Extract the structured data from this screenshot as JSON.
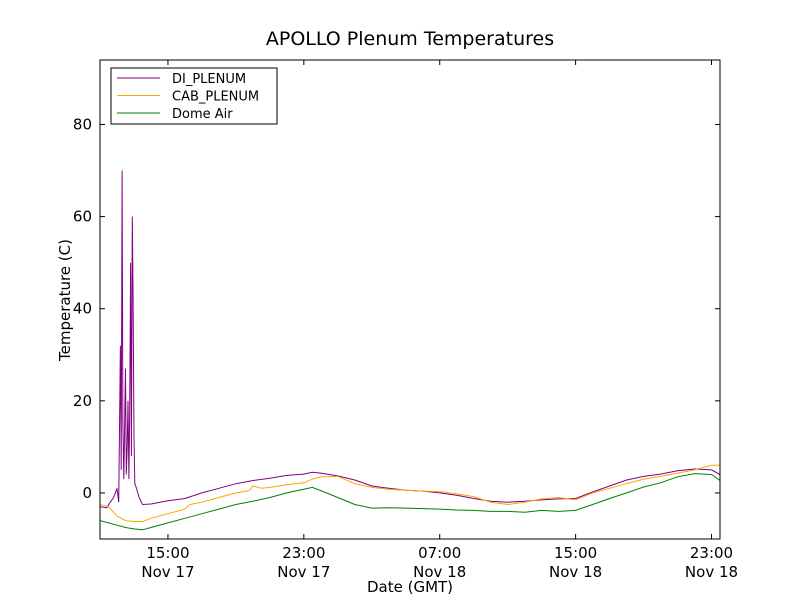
{
  "chart_data": {
    "type": "line",
    "title": "APOLLO Plenum Temperatures",
    "xlabel": "Date (GMT)",
    "ylabel": "Temperature (C)",
    "x_unit": "hours since Nov 17 00:00 GMT",
    "xlim": [
      11.0,
      47.5
    ],
    "ylim": [
      -10,
      94
    ],
    "yticks": [
      0,
      20,
      40,
      60,
      80
    ],
    "xticks": [
      {
        "x": 15,
        "time": "15:00",
        "date": "Nov 17"
      },
      {
        "x": 23,
        "time": "23:00",
        "date": "Nov 17"
      },
      {
        "x": 31,
        "time": "07:00",
        "date": "Nov 18"
      },
      {
        "x": 39,
        "time": "15:00",
        "date": "Nov 18"
      },
      {
        "x": 47,
        "time": "23:00",
        "date": "Nov 18"
      }
    ],
    "legend_position": "top-left",
    "series": [
      {
        "name": "DI_PLENUM",
        "color": "#800080",
        "points": [
          [
            11.0,
            -3
          ],
          [
            11.4,
            -3.2
          ],
          [
            11.6,
            -2
          ],
          [
            11.8,
            -1
          ],
          [
            12.0,
            1
          ],
          [
            12.1,
            -2
          ],
          [
            12.2,
            32
          ],
          [
            12.25,
            5
          ],
          [
            12.3,
            70
          ],
          [
            12.35,
            15
          ],
          [
            12.4,
            3
          ],
          [
            12.5,
            27
          ],
          [
            12.55,
            4
          ],
          [
            12.6,
            10
          ],
          [
            12.65,
            20
          ],
          [
            12.7,
            3
          ],
          [
            12.75,
            18
          ],
          [
            12.8,
            50
          ],
          [
            12.85,
            8
          ],
          [
            12.9,
            60
          ],
          [
            12.95,
            42
          ],
          [
            13.0,
            12
          ],
          [
            13.05,
            2
          ],
          [
            13.15,
            1
          ],
          [
            13.3,
            -1
          ],
          [
            13.5,
            -2.5
          ],
          [
            14,
            -2.4
          ],
          [
            15,
            -1.7
          ],
          [
            16,
            -1.2
          ],
          [
            17,
            0
          ],
          [
            18,
            1
          ],
          [
            19,
            2
          ],
          [
            20,
            2.7
          ],
          [
            21,
            3.2
          ],
          [
            22,
            3.8
          ],
          [
            23,
            4.1
          ],
          [
            23.5,
            4.5
          ],
          [
            24,
            4.3
          ],
          [
            25,
            3.7
          ],
          [
            26,
            2.8
          ],
          [
            27,
            1.5
          ],
          [
            28,
            1.0
          ],
          [
            29,
            0.6
          ],
          [
            30,
            0.4
          ],
          [
            31,
            0
          ],
          [
            32,
            -0.5
          ],
          [
            33,
            -1.2
          ],
          [
            34,
            -1.8
          ],
          [
            35,
            -2
          ],
          [
            36,
            -1.8
          ],
          [
            37,
            -1.5
          ],
          [
            38,
            -1.3
          ],
          [
            39,
            -1.2
          ],
          [
            40,
            0.2
          ],
          [
            41,
            1.5
          ],
          [
            42,
            2.8
          ],
          [
            43,
            3.6
          ],
          [
            44,
            4.1
          ],
          [
            45,
            4.8
          ],
          [
            46,
            5.2
          ],
          [
            47,
            5.0
          ],
          [
            47.5,
            4.0
          ]
        ]
      },
      {
        "name": "CAB_PLENUM",
        "color": "#FFA500",
        "points": [
          [
            11.0,
            -2.5
          ],
          [
            11.5,
            -3
          ],
          [
            12.0,
            -5
          ],
          [
            12.5,
            -6
          ],
          [
            13.0,
            -6.2
          ],
          [
            13.5,
            -6.2
          ],
          [
            14,
            -5.5
          ],
          [
            15,
            -4.5
          ],
          [
            16,
            -3.5
          ],
          [
            16.3,
            -2.5
          ],
          [
            17,
            -2
          ],
          [
            18,
            -1
          ],
          [
            19,
            0
          ],
          [
            19.8,
            0.5
          ],
          [
            20,
            1.5
          ],
          [
            20.5,
            1
          ],
          [
            21,
            1.2
          ],
          [
            22,
            1.8
          ],
          [
            23,
            2.2
          ],
          [
            23.5,
            3
          ],
          [
            24,
            3.5
          ],
          [
            25,
            3.6
          ],
          [
            26,
            2
          ],
          [
            27,
            1.2
          ],
          [
            28,
            0.8
          ],
          [
            29,
            0.6
          ],
          [
            30,
            0.4
          ],
          [
            31,
            0.3
          ],
          [
            32,
            -0.2
          ],
          [
            33,
            -0.8
          ],
          [
            34,
            -2
          ],
          [
            35,
            -2.5
          ],
          [
            36,
            -2
          ],
          [
            37,
            -1.3
          ],
          [
            38,
            -1.0
          ],
          [
            39,
            -1.5
          ],
          [
            40,
            0
          ],
          [
            41,
            1
          ],
          [
            42,
            2
          ],
          [
            43,
            3
          ],
          [
            44,
            3.6
          ],
          [
            45,
            4.3
          ],
          [
            46,
            5
          ],
          [
            47,
            6
          ],
          [
            47.5,
            6
          ]
        ]
      },
      {
        "name": "Dome Air",
        "color": "#008000",
        "points": [
          [
            11.0,
            -6
          ],
          [
            11.5,
            -6.5
          ],
          [
            12.0,
            -7
          ],
          [
            12.5,
            -7.5
          ],
          [
            13.0,
            -7.8
          ],
          [
            13.5,
            -8
          ],
          [
            14,
            -7.5
          ],
          [
            15,
            -6.5
          ],
          [
            16,
            -5.5
          ],
          [
            17,
            -4.5
          ],
          [
            18,
            -3.5
          ],
          [
            19,
            -2.5
          ],
          [
            20,
            -1.8
          ],
          [
            21,
            -1
          ],
          [
            22,
            0
          ],
          [
            23,
            0.8
          ],
          [
            23.5,
            1.2
          ],
          [
            24,
            0.5
          ],
          [
            25,
            -1
          ],
          [
            26,
            -2.5
          ],
          [
            27,
            -3.3
          ],
          [
            28,
            -3.2
          ],
          [
            29,
            -3.3
          ],
          [
            30,
            -3.4
          ],
          [
            31,
            -3.5
          ],
          [
            32,
            -3.7
          ],
          [
            33,
            -3.8
          ],
          [
            34,
            -4
          ],
          [
            35,
            -4
          ],
          [
            36,
            -4.2
          ],
          [
            37,
            -3.8
          ],
          [
            38,
            -4
          ],
          [
            39,
            -3.8
          ],
          [
            40,
            -2.5
          ],
          [
            41,
            -1.2
          ],
          [
            42,
            0
          ],
          [
            43,
            1.3
          ],
          [
            44,
            2.2
          ],
          [
            45,
            3.5
          ],
          [
            46,
            4.2
          ],
          [
            47,
            4.0
          ],
          [
            47.5,
            2.7
          ]
        ]
      }
    ]
  }
}
